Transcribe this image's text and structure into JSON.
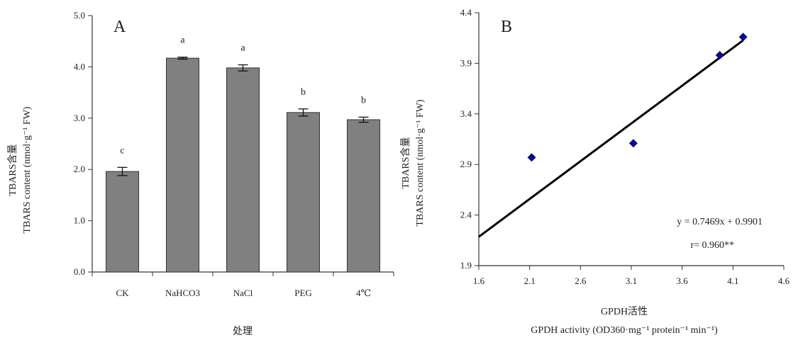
{
  "chart_data": [
    {
      "type": "bar",
      "panel": "A",
      "categories": [
        "CK",
        "NaHCO3",
        "NaCl",
        "PEG",
        "4℃"
      ],
      "values": [
        1.96,
        4.17,
        3.98,
        3.11,
        2.97
      ],
      "errors": [
        0.08,
        0.02,
        0.06,
        0.07,
        0.05
      ],
      "significance": [
        "c",
        "a",
        "a",
        "b",
        "b"
      ],
      "ylabel_cn": "TBARS含量",
      "ylabel_en": "TBARS content (nmol·g⁻¹ FW)",
      "xlabel": "处理",
      "ylim": [
        0,
        5
      ],
      "yticks": [
        "0.0",
        "1.0",
        "2.0",
        "3.0",
        "4.0",
        "5.0"
      ],
      "bar_color": "#808080"
    },
    {
      "type": "scatter",
      "panel": "B",
      "points": [
        {
          "x": 2.12,
          "y": 2.97
        },
        {
          "x": 3.12,
          "y": 3.11
        },
        {
          "x": 3.97,
          "y": 3.98
        },
        {
          "x": 4.2,
          "y": 4.16
        }
      ],
      "fit": {
        "slope": 0.7469,
        "intercept": 0.9901,
        "x_range": [
          1.6,
          4.2
        ]
      },
      "equation": "y = 0.7469x + 0.9901",
      "r_text": "r= 0.960**",
      "xlabel_cn": "GPDH活性",
      "xlabel_en": "GPDH activity (OD360·mg⁻¹ protein⁻¹ min⁻¹)",
      "ylabel_cn": "TBARS含量",
      "ylabel_en": "TBARS content (nmol·g⁻¹ FW)",
      "xlim": [
        1.6,
        4.6
      ],
      "ylim": [
        1.9,
        4.4
      ],
      "xticks": [
        "1.6",
        "2.1",
        "2.6",
        "3.1",
        "3.6",
        "4.1",
        "4.6"
      ],
      "yticks": [
        "1.9",
        "2.4",
        "2.9",
        "3.4",
        "3.9",
        "4.4"
      ],
      "marker_color": "#0a0a8c"
    }
  ]
}
